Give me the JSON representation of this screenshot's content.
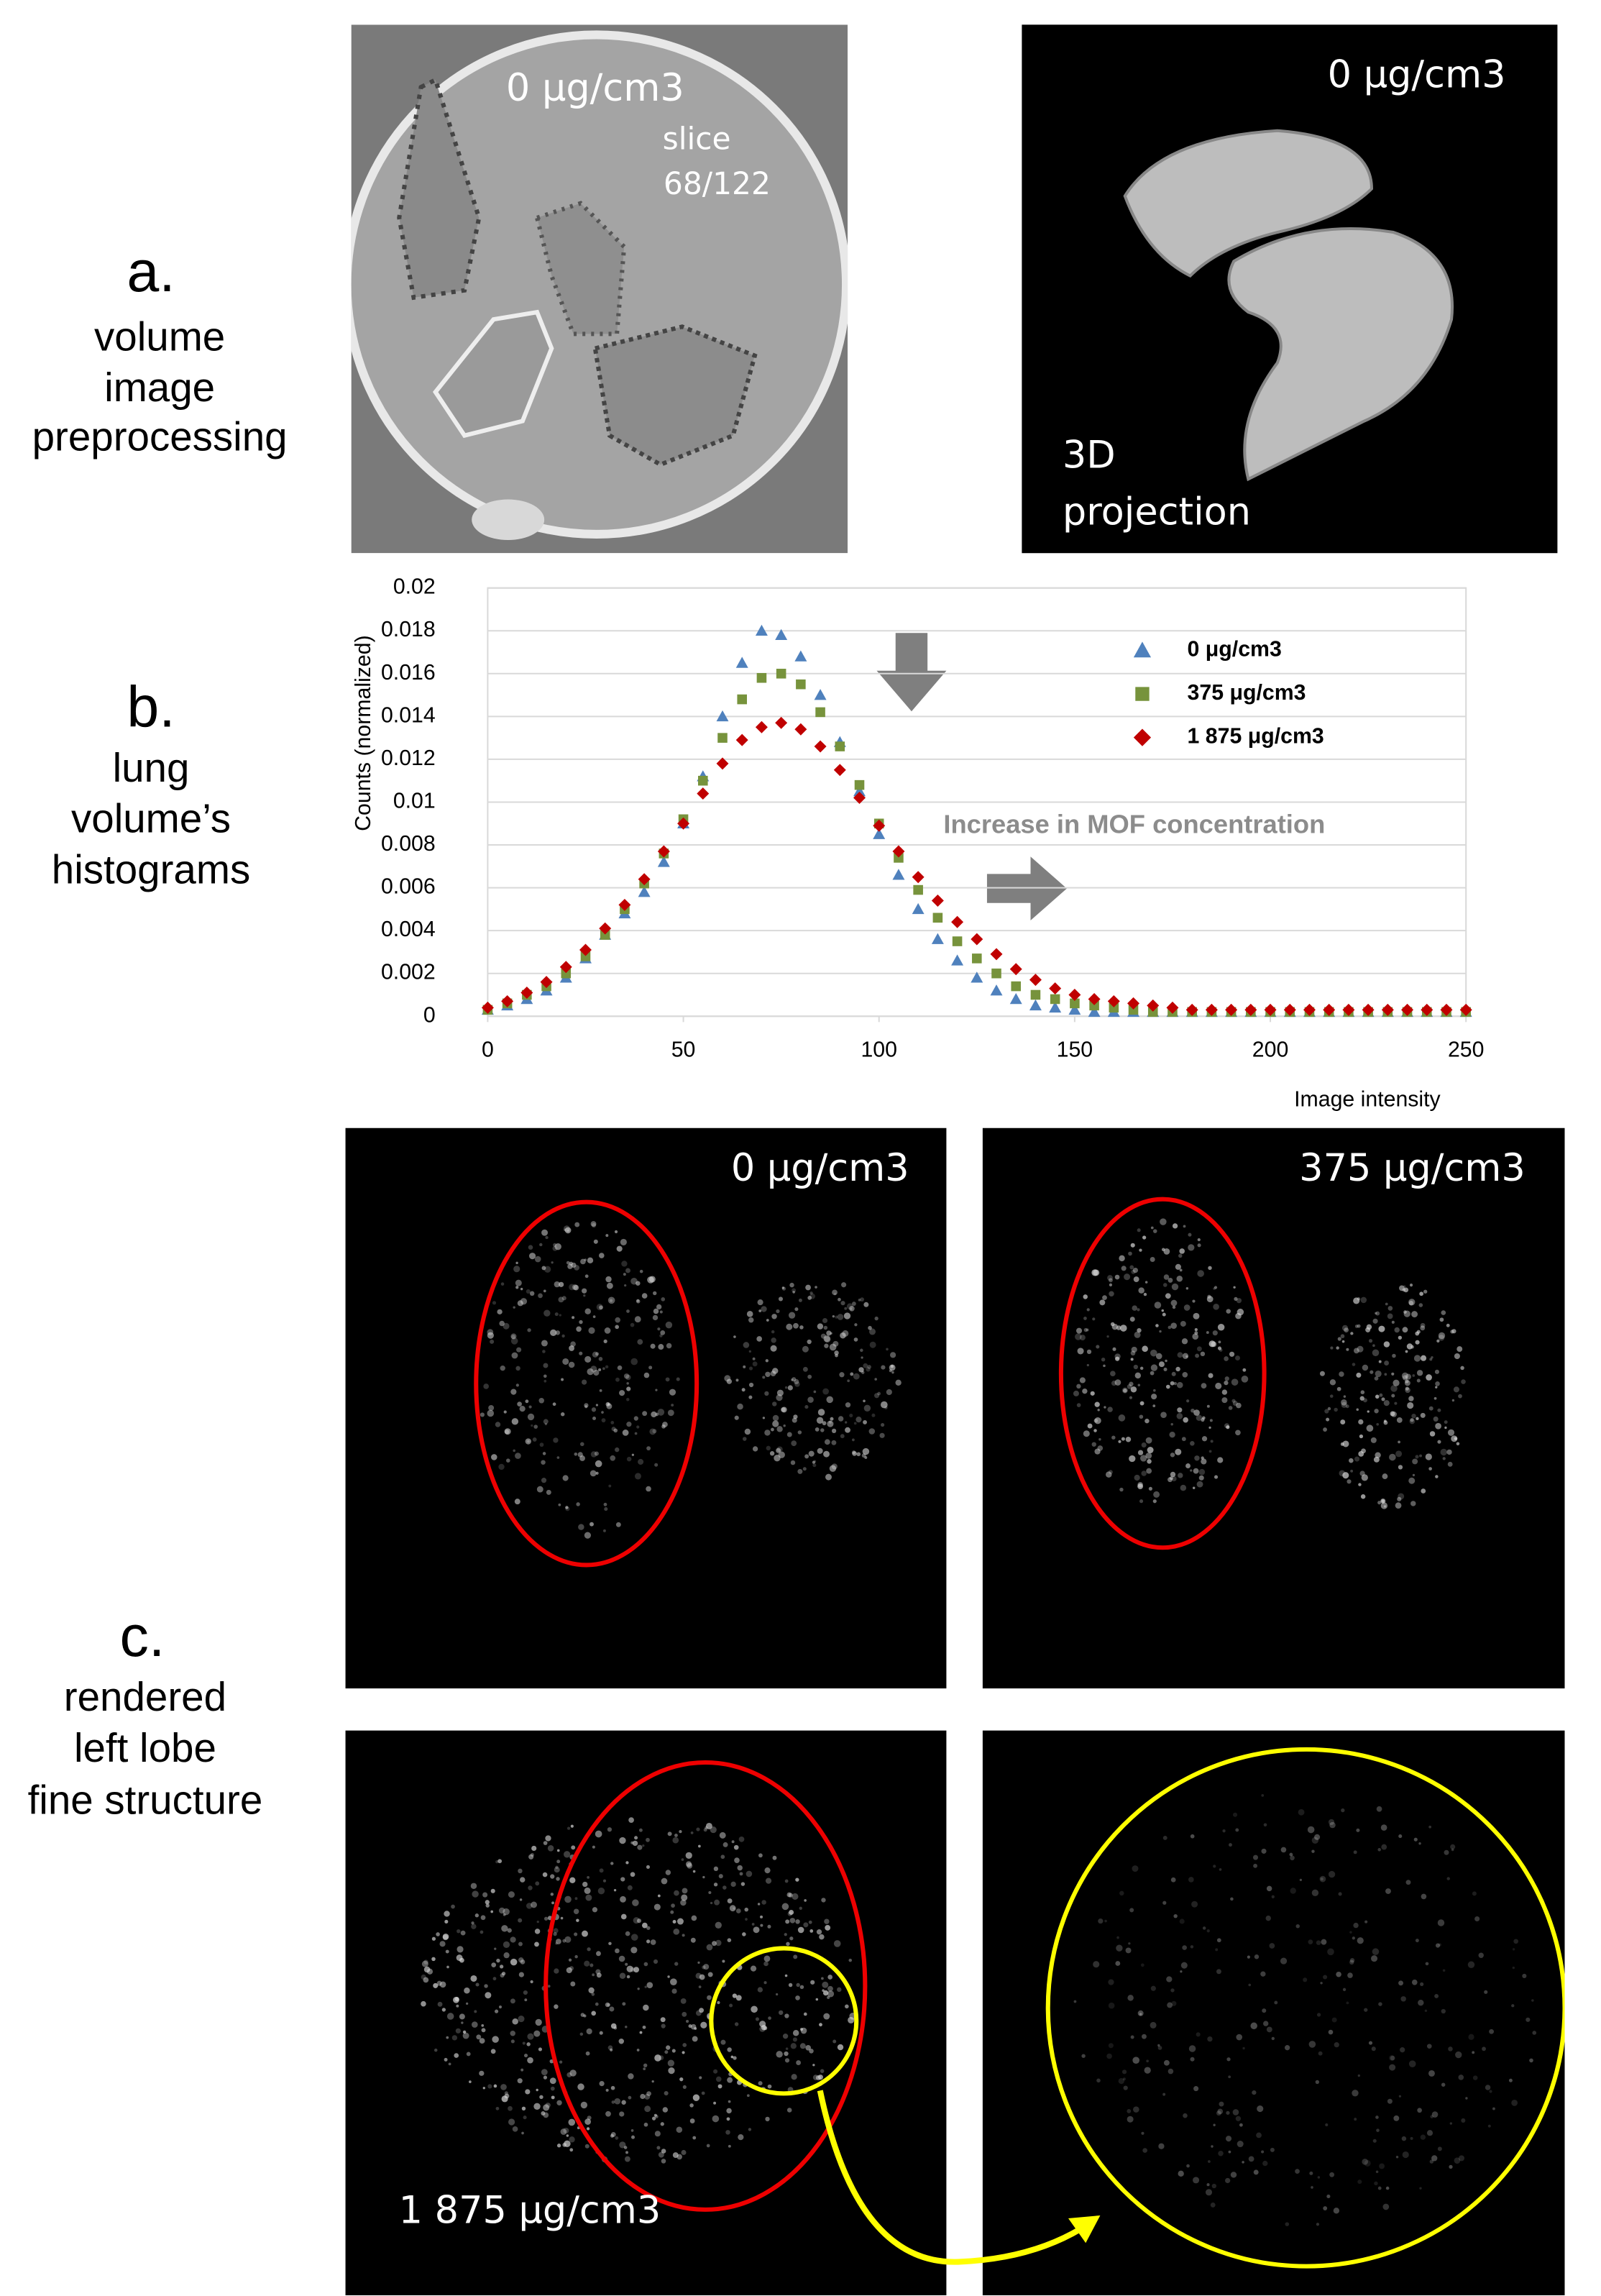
{
  "panels": [
    {
      "letter": "a.",
      "caption": [
        "volume",
        "image",
        "preprocessing"
      ]
    },
    {
      "letter": "b.",
      "caption": [
        "lung",
        "volume’s",
        "histograms"
      ]
    },
    {
      "letter": "c.",
      "caption": [
        "rendered",
        "left lobe",
        "fine structure"
      ]
    }
  ],
  "images": {
    "slice": {
      "label": "0 μg/cm3",
      "slice": [
        "slice",
        "68/122"
      ]
    },
    "projection": {
      "label": "0 μg/cm3",
      "caption": [
        "3D",
        "projection"
      ]
    },
    "render_0": "0 μg/cm3",
    "render_375": "375 μg/cm3",
    "render_1875": "1 875 μg/cm3"
  },
  "chart_data": {
    "type": "scatter",
    "ylabel": "Counts (normalized)",
    "xlabel": "Image intensity",
    "annotation": "Increase in MOF concentration",
    "xlim": [
      0,
      250
    ],
    "xticks": [
      0,
      50,
      100,
      150,
      200,
      250
    ],
    "ylim": [
      0,
      0.02
    ],
    "yticks": [
      0,
      0.002,
      0.004,
      0.006,
      0.008,
      0.01,
      0.012,
      0.014,
      0.016,
      0.018,
      0.02
    ],
    "grid": true,
    "legend": "upper right",
    "x": [
      0,
      5,
      10,
      15,
      20,
      25,
      30,
      35,
      40,
      45,
      50,
      55,
      60,
      65,
      70,
      75,
      80,
      85,
      90,
      95,
      100,
      105,
      110,
      115,
      120,
      125,
      130,
      135,
      140,
      145,
      150,
      155,
      160,
      165,
      170,
      175,
      180,
      185,
      190,
      195,
      200,
      205,
      210,
      215,
      220,
      225,
      230,
      235,
      240,
      245,
      250
    ],
    "series": [
      {
        "name": "0 μg/cm3",
        "color": "#4f81bd",
        "marker": "triangle",
        "values": [
          0.0003,
          0.0005,
          0.0008,
          0.0012,
          0.0018,
          0.0027,
          0.0038,
          0.0048,
          0.0058,
          0.0072,
          0.009,
          0.0112,
          0.014,
          0.0165,
          0.018,
          0.0178,
          0.0168,
          0.015,
          0.0128,
          0.0105,
          0.0085,
          0.0066,
          0.005,
          0.0036,
          0.0026,
          0.0018,
          0.0012,
          0.0008,
          0.0005,
          0.0004,
          0.0003,
          0.0002,
          0.0002,
          0.0002,
          0.0002,
          0.0002,
          0.0002,
          0.0002,
          0.0002,
          0.0002,
          0.0002,
          0.0002,
          0.0002,
          0.0002,
          0.0002,
          0.0002,
          0.0002,
          0.0002,
          0.0002,
          0.0002,
          0.0002
        ]
      },
      {
        "name": "375 μg/cm3",
        "color": "#77933c",
        "marker": "square",
        "values": [
          0.0003,
          0.0006,
          0.001,
          0.0014,
          0.002,
          0.0028,
          0.0038,
          0.005,
          0.0062,
          0.0076,
          0.0092,
          0.011,
          0.013,
          0.0148,
          0.0158,
          0.016,
          0.0155,
          0.0142,
          0.0126,
          0.0108,
          0.009,
          0.0074,
          0.0059,
          0.0046,
          0.0035,
          0.0027,
          0.002,
          0.0014,
          0.001,
          0.0008,
          0.0006,
          0.0005,
          0.0004,
          0.0003,
          0.0002,
          0.0002,
          0.0002,
          0.0002,
          0.0002,
          0.0002,
          0.0002,
          0.0002,
          0.0002,
          0.0002,
          0.0002,
          0.0002,
          0.0002,
          0.0002,
          0.0002,
          0.0002,
          0.0002
        ]
      },
      {
        "name": "1 875 μg/cm3",
        "color": "#c00000",
        "marker": "diamond",
        "values": [
          0.0004,
          0.0007,
          0.0011,
          0.0016,
          0.0023,
          0.0031,
          0.0041,
          0.0052,
          0.0064,
          0.0077,
          0.009,
          0.0104,
          0.0118,
          0.0129,
          0.0135,
          0.0137,
          0.0134,
          0.0126,
          0.0115,
          0.0102,
          0.0089,
          0.0077,
          0.0065,
          0.0054,
          0.0044,
          0.0036,
          0.0029,
          0.0022,
          0.0017,
          0.0013,
          0.001,
          0.0008,
          0.0007,
          0.0006,
          0.0005,
          0.0004,
          0.0003,
          0.0003,
          0.0003,
          0.0003,
          0.0003,
          0.0003,
          0.0003,
          0.0003,
          0.0003,
          0.0003,
          0.0003,
          0.0003,
          0.0003,
          0.0003,
          0.0003
        ]
      }
    ]
  }
}
